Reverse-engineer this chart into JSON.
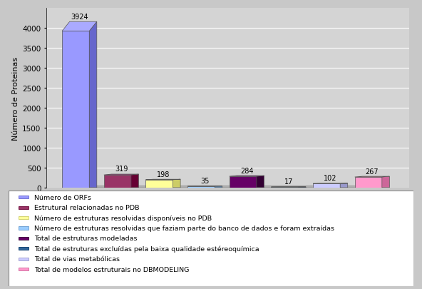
{
  "values": [
    3924,
    319,
    198,
    35,
    284,
    17,
    102,
    267
  ],
  "bar_colors": [
    "#9999FF",
    "#993366",
    "#FFFF99",
    "#99CCFF",
    "#660066",
    "#336699",
    "#CCCCFF",
    "#FF99CC"
  ],
  "bar_side_colors": [
    "#6666CC",
    "#660033",
    "#CCCC66",
    "#6699CC",
    "#330033",
    "#003366",
    "#9999CC",
    "#CC6699"
  ],
  "bar_top_colors": [
    "#AAAAFF",
    "#AA4488",
    "#FFFFCC",
    "#CCDDFF",
    "#880088",
    "#4488AA",
    "#DDDDFF",
    "#FFAABB"
  ],
  "legend_labels": [
    "Número de ORFs",
    "Estrutural relacionadas no PDB",
    "Número de estruturas resolvidas disponíveis no PDB",
    "Número de estruturas resolvidas que faziam parte do banco de dados e foram extraídas",
    "Total de estruturas modeladas",
    "Total de estruturas excluídas pela baixa qualidade estéreoquímica",
    "Total de vias metabólicas",
    "Total de modelos estruturais no DBMODELING"
  ],
  "ylabel": "Número de Proteinas",
  "ylim": [
    0,
    4500
  ],
  "yticks": [
    0,
    500,
    1000,
    1500,
    2000,
    2500,
    3000,
    3500,
    4000
  ],
  "chart_bg": "#C8C8C8",
  "plot_bg": "#D4D4D4",
  "fig_bg": "#C8C8C8",
  "grid_color": "#FFFFFF",
  "floor_color": "#B0B0B0",
  "wall_color": "#C0C0C0"
}
